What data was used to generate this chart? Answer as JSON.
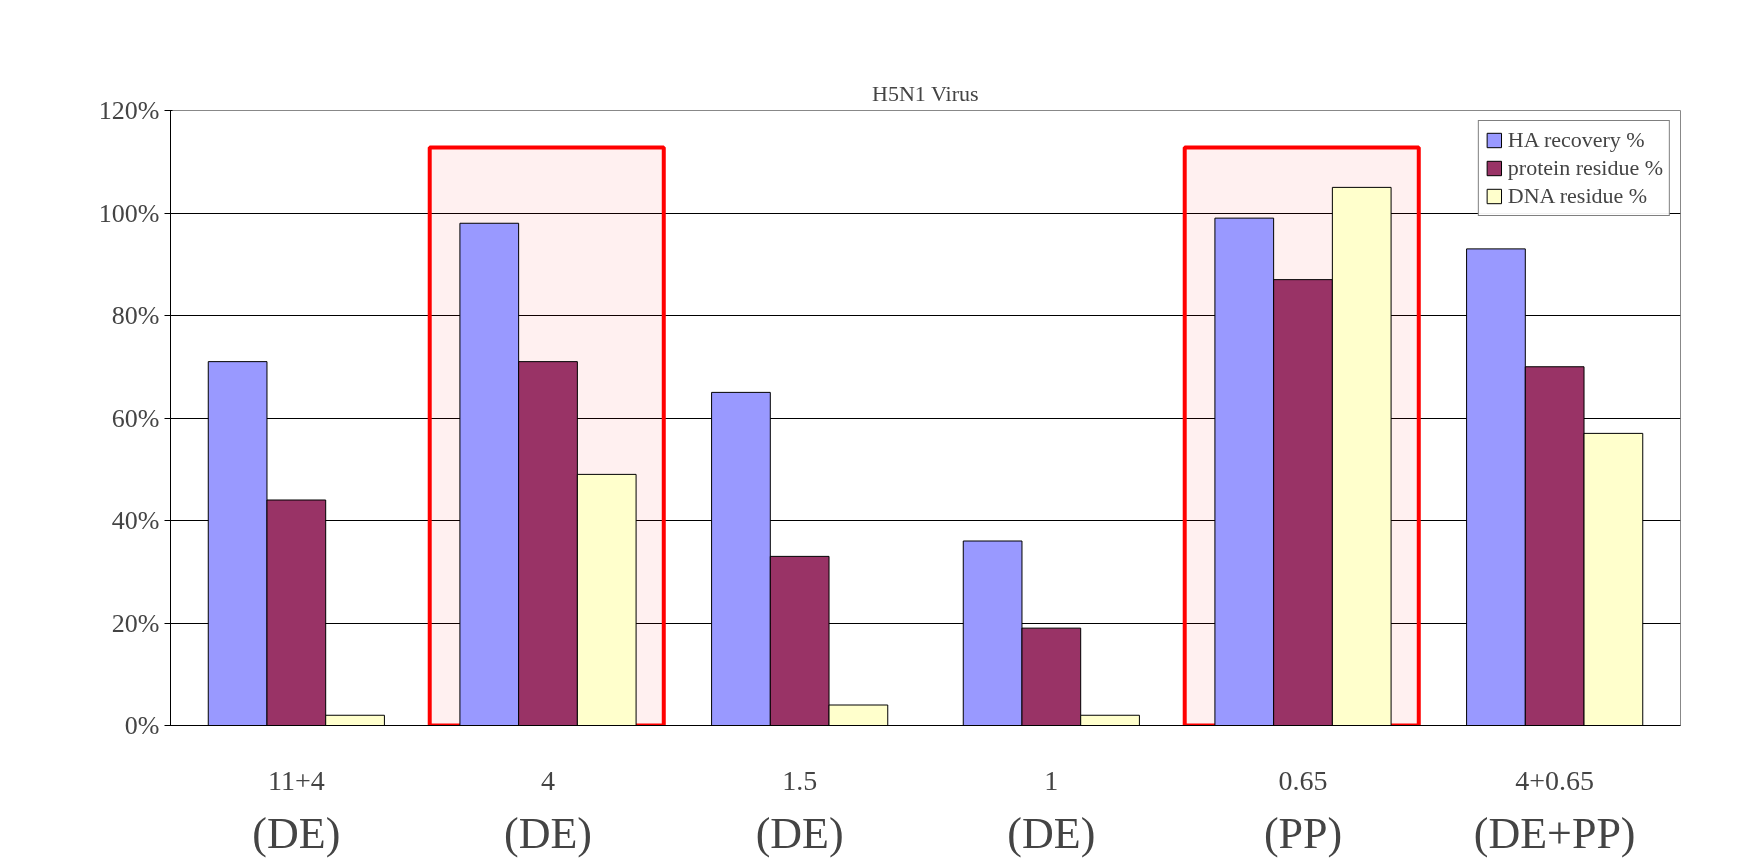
{
  "chart_data": {
    "type": "bar",
    "title": "H5N1 Virus",
    "categories": [
      "11+4",
      "4",
      "1.5",
      "1",
      "0.65",
      "4+0.65"
    ],
    "annotations": [
      "(DE)",
      "(DE)",
      "(DE)",
      "(DE)",
      "(PP)",
      "(DE+PP)"
    ],
    "series": [
      {
        "name": "HA recovery %",
        "color": "#9999ff",
        "values": [
          71,
          98,
          65,
          36,
          99,
          93
        ]
      },
      {
        "name": "protein residue %",
        "color": "#993366",
        "values": [
          44,
          71,
          33,
          19,
          87,
          70
        ]
      },
      {
        "name": "DNA residue %",
        "color": "#ffffcc",
        "values": [
          2,
          49,
          4,
          2,
          105,
          57
        ]
      }
    ],
    "ylim": [
      0,
      120
    ],
    "yticks": [
      {
        "value": 0,
        "label": "0%"
      },
      {
        "value": 20,
        "label": "20%"
      },
      {
        "value": 40,
        "label": "40%"
      },
      {
        "value": 60,
        "label": "60%"
      },
      {
        "value": 80,
        "label": "80%"
      },
      {
        "value": 100,
        "label": "100%"
      },
      {
        "value": 120,
        "label": "120%"
      }
    ],
    "grid": "y",
    "legend": "top right",
    "bands": [
      {
        "axis": "x",
        "from": "4",
        "to": "4",
        "color": "#ff0000"
      },
      {
        "axis": "x",
        "from": "0.65",
        "to": "0.65",
        "color": "#ff0000"
      }
    ]
  }
}
